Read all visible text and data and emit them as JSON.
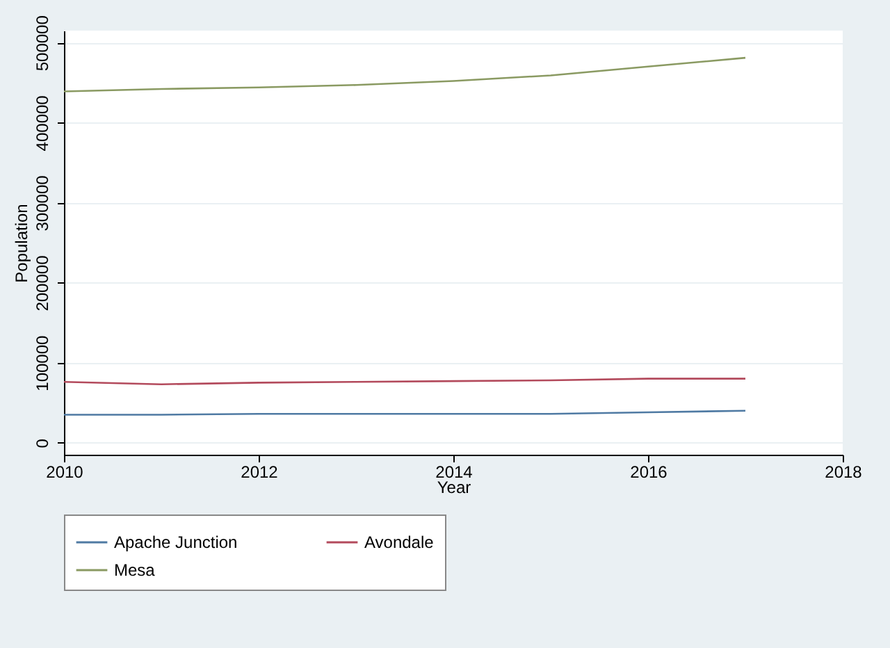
{
  "chart_data": {
    "type": "line",
    "xlabel": "Year",
    "ylabel": "Population",
    "x": [
      2010,
      2011,
      2012,
      2013,
      2014,
      2015,
      2016,
      2017
    ],
    "series": [
      {
        "name": "Apache Junction",
        "color": "#4f7aa3",
        "values": [
          35000,
          35000,
          36000,
          36000,
          36000,
          36000,
          38000,
          40000
        ]
      },
      {
        "name": "Avondale",
        "color": "#b34a5c",
        "values": [
          76000,
          73000,
          75000,
          76000,
          77000,
          78000,
          80000,
          80000
        ]
      },
      {
        "name": "Mesa",
        "color": "#8a9a62",
        "values": [
          439000,
          442000,
          444000,
          447000,
          452000,
          459000,
          470000,
          481000
        ]
      }
    ],
    "xlim": [
      2010,
      2018
    ],
    "xticks": [
      2010,
      2012,
      2014,
      2016,
      2018
    ],
    "ylim": [
      -15000,
      515000
    ],
    "yticks": [
      0,
      100000,
      200000,
      300000,
      400000,
      500000
    ],
    "grid": "y",
    "legend": "bottom",
    "marker": "none",
    "line_style": "solid"
  }
}
